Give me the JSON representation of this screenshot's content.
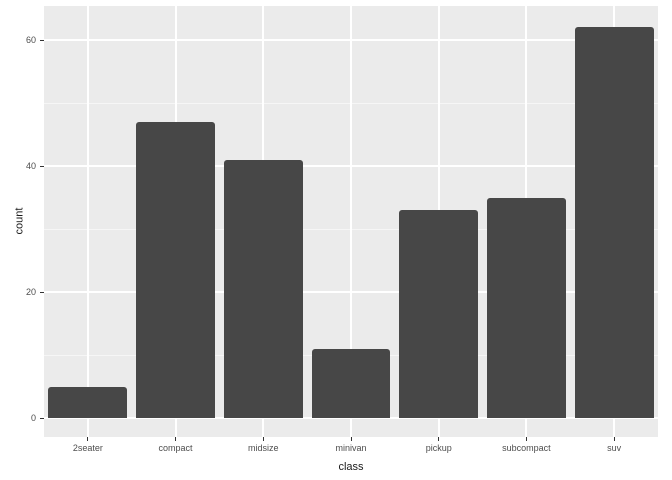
{
  "chart_data": {
    "type": "bar",
    "title": "",
    "xlabel": "class",
    "ylabel": "count",
    "categories": [
      "2seater",
      "compact",
      "midsize",
      "minivan",
      "pickup",
      "subcompact",
      "suv"
    ],
    "values": [
      5,
      47,
      41,
      11,
      33,
      35,
      62
    ],
    "yticks": [
      0,
      20,
      40,
      60
    ],
    "yminor": [
      10,
      30,
      50
    ],
    "ylim": [
      -3.1,
      65.4
    ],
    "bar_rel_width": 0.9,
    "grid": "major-and-minor",
    "legend": "none"
  },
  "colors": {
    "figure_bg": "#ffffff",
    "panel_bg": "#ebebeb",
    "grid_major": "#ffffff",
    "grid_minor": "#f6f6f6",
    "bar_fill": "#474747",
    "tick_label": "#4d4d4d",
    "axis_title": "#1a1a1a",
    "tick_mark": "#333333"
  }
}
